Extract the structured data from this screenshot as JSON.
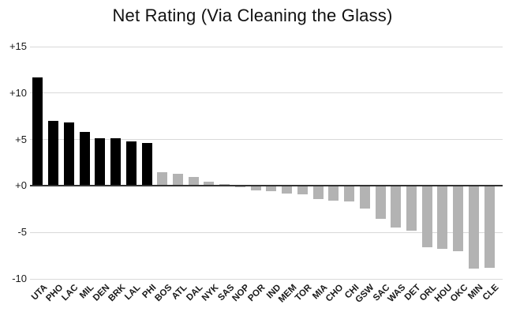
{
  "title": "Net Rating (Via Cleaning the Glass)",
  "chart_data": {
    "type": "bar",
    "title": "Net Rating (Via Cleaning the Glass)",
    "xlabel": "",
    "ylabel": "",
    "categories": [
      "UTA",
      "PHO",
      "LAC",
      "MIL",
      "DEN",
      "BRK",
      "LAL",
      "PHI",
      "BOS",
      "ATL",
      "DAL",
      "NYK",
      "SAS",
      "NOP",
      "POR",
      "IND",
      "MEM",
      "TOR",
      "MIA",
      "CHO",
      "CHI",
      "GSW",
      "SAC",
      "WAS",
      "DET",
      "ORL",
      "HOU",
      "OKC",
      "MIN",
      "CLE"
    ],
    "values": [
      11.7,
      7.0,
      6.8,
      5.8,
      5.1,
      5.1,
      4.8,
      4.6,
      1.5,
      1.3,
      1.0,
      0.5,
      0.2,
      -0.1,
      -0.5,
      -0.6,
      -0.8,
      -0.9,
      -1.4,
      -1.6,
      -1.7,
      -2.4,
      -3.5,
      -4.5,
      -4.8,
      -6.6,
      -6.8,
      -7.0,
      -8.9,
      -8.8
    ],
    "highlight_count": 8,
    "y_ticks": [
      {
        "label": "+15",
        "value": 15
      },
      {
        "label": "+10",
        "value": 10
      },
      {
        "label": "+5",
        "value": 5
      },
      {
        "label": "+0",
        "value": 0
      },
      {
        "label": "-5",
        "value": -5
      },
      {
        "label": "-10",
        "value": -10
      }
    ],
    "ylim": [
      -10,
      15
    ],
    "grid": true,
    "legend": "none",
    "colors": {
      "bar_highlight": "#000000",
      "bar_default": "#b3b3b3",
      "gridline": "#d9d9d9",
      "zero_line": "#333333",
      "text": "#1a1a1a",
      "background": "#ffffff"
    }
  }
}
